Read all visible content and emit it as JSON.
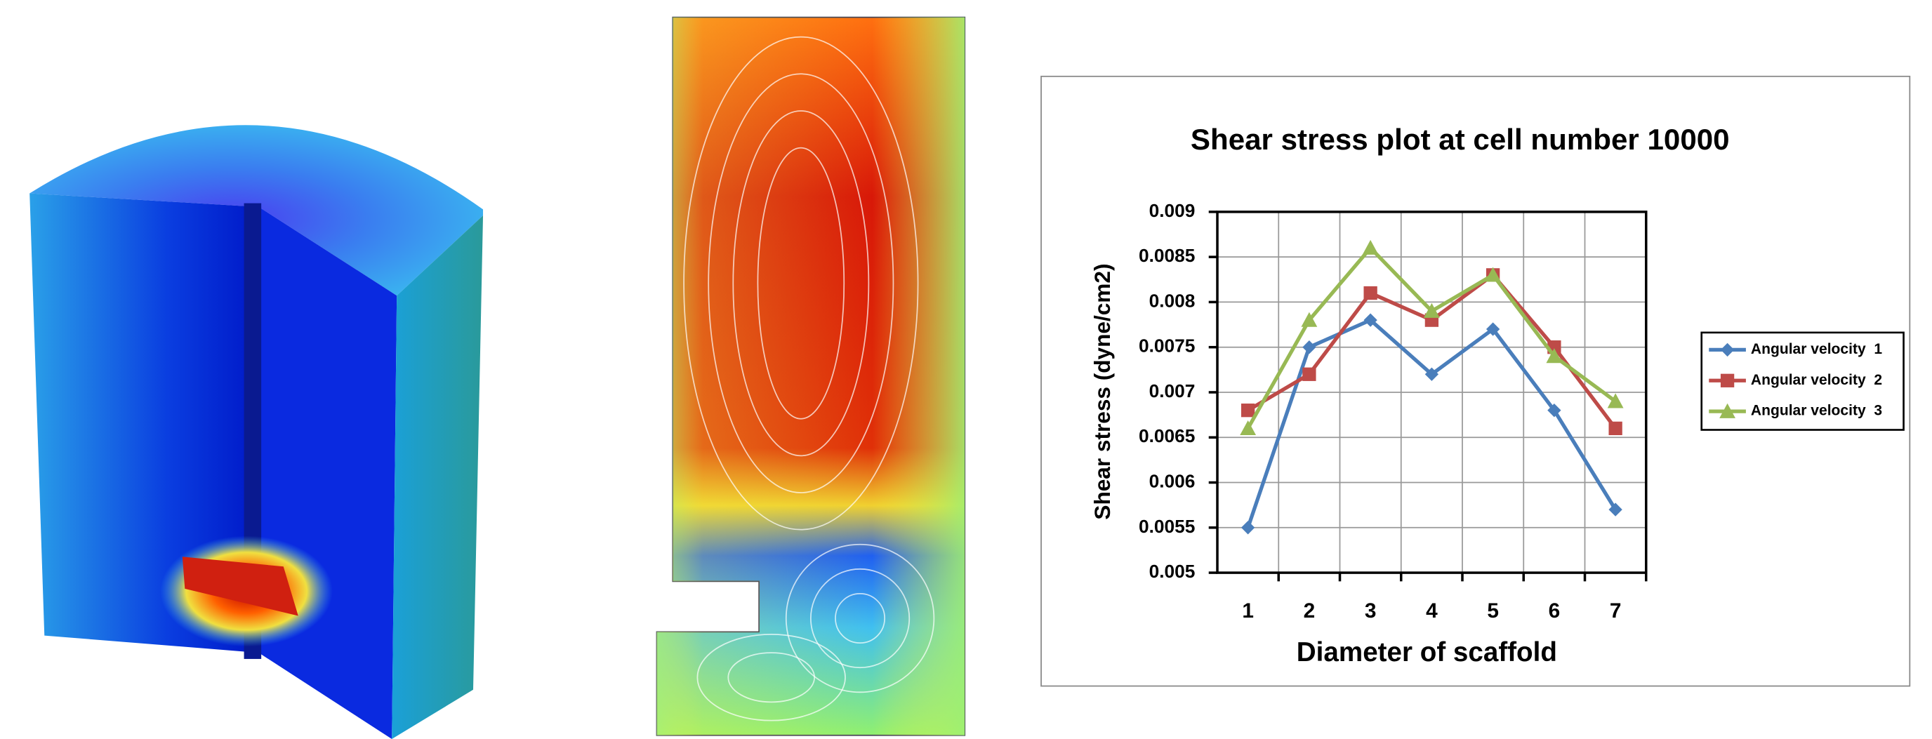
{
  "chart_data": {
    "type": "line",
    "title": "Shear stress plot at cell number 10000",
    "x_label": "Diameter of scaffold",
    "y_label": "Shear stress (dyne/cm2)",
    "categories": [
      "1",
      "2",
      "3",
      "4",
      "5",
      "6",
      "7"
    ],
    "series": [
      {
        "name": "Angular velocity  1",
        "color": "#4a7ebb",
        "marker": "diamond",
        "values": [
          0.0055,
          0.0075,
          0.0078,
          0.0072,
          0.0077,
          0.0068,
          0.0057
        ]
      },
      {
        "name": "Angular velocity  2",
        "color": "#be4b48",
        "marker": "square",
        "values": [
          0.0068,
          0.0072,
          0.0081,
          0.0078,
          0.0083,
          0.0075,
          0.0066
        ]
      },
      {
        "name": "Angular velocity  3",
        "color": "#98b954",
        "marker": "triangle",
        "values": [
          0.0066,
          0.0078,
          0.0086,
          0.0079,
          0.0083,
          0.0074,
          0.0069
        ]
      }
    ],
    "ylim": [
      0.005,
      0.009
    ],
    "yticks": [
      0.005,
      0.0055,
      0.006,
      0.0065,
      0.007,
      0.0075,
      0.008,
      0.0085,
      0.009
    ],
    "grid": true,
    "legend": "right"
  }
}
